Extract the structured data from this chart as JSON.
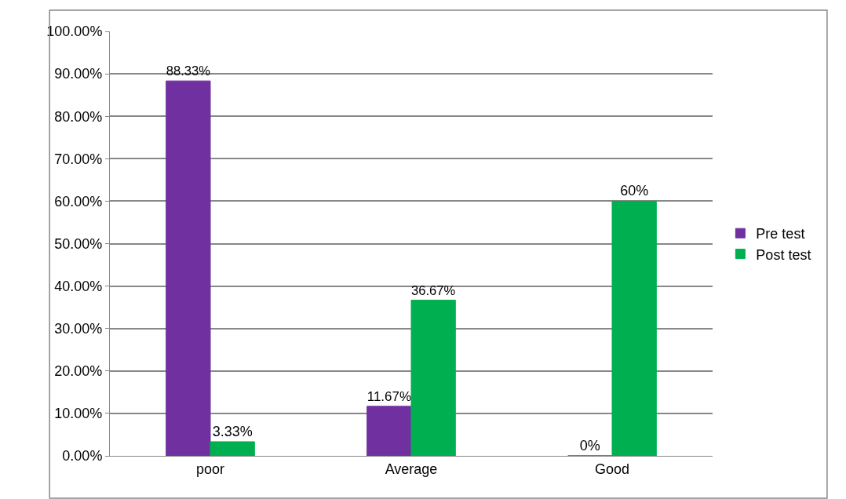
{
  "chart_data": {
    "type": "bar",
    "categories": [
      "poor",
      "Average",
      "Good"
    ],
    "series": [
      {
        "name": "Pre test",
        "color": "#7030a0",
        "values": [
          88.33,
          11.67,
          0
        ],
        "value_labels": [
          "88.33%",
          "11.67%",
          "0%"
        ]
      },
      {
        "name": "Post test",
        "color": "#00b050",
        "values": [
          3.33,
          36.67,
          60
        ],
        "value_labels": [
          "3.33%",
          "36.67%",
          "60%"
        ]
      }
    ],
    "ylim": [
      0,
      100
    ],
    "yticks": [
      {
        "value": 0,
        "label": "0.00%"
      },
      {
        "value": 10,
        "label": "10.00%"
      },
      {
        "value": 20,
        "label": "20.00%"
      },
      {
        "value": 30,
        "label": "30.00%"
      },
      {
        "value": 40,
        "label": "40.00%"
      },
      {
        "value": 50,
        "label": "50.00%"
      },
      {
        "value": 60,
        "label": "60.00%"
      },
      {
        "value": 70,
        "label": "70.00%"
      },
      {
        "value": 80,
        "label": "80.00%"
      },
      {
        "value": 90,
        "label": "90.00%"
      },
      {
        "value": 100,
        "label": "100.00%"
      }
    ],
    "grid": "y",
    "legend": "right"
  }
}
